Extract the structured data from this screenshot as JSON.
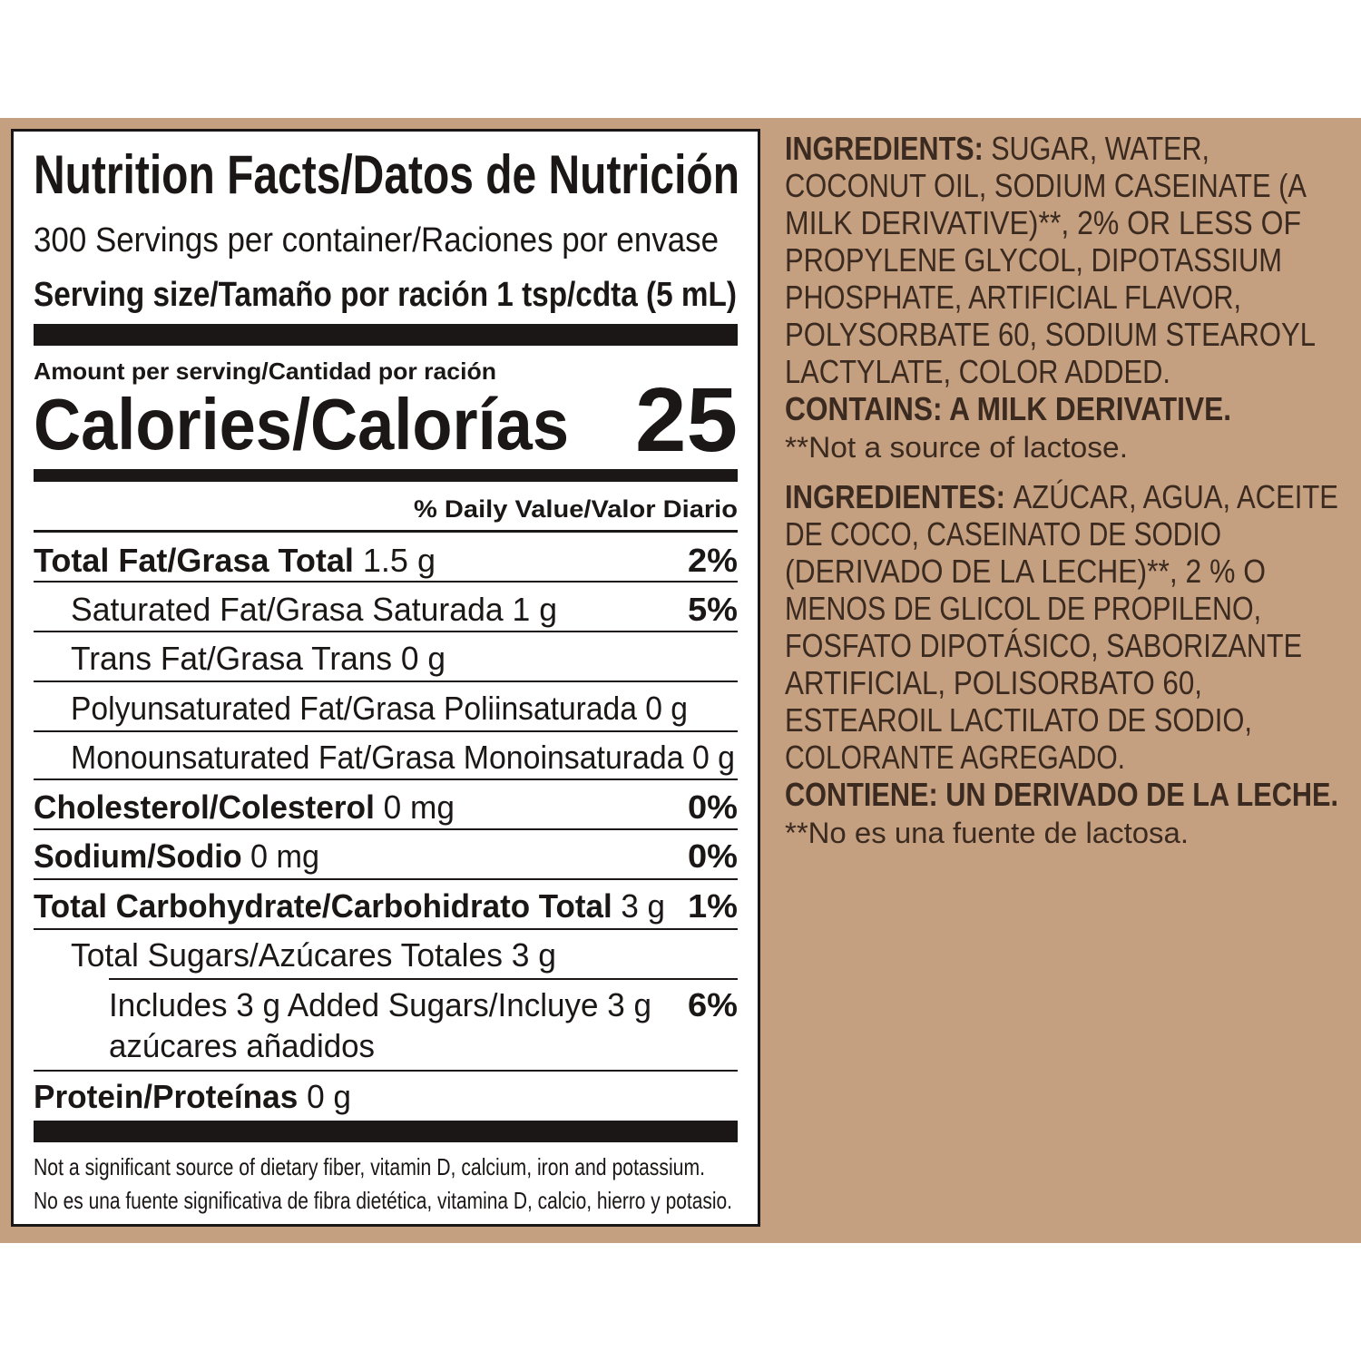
{
  "nutrition": {
    "title": "Nutrition Facts/Datos de Nutrición",
    "servings": "300 Servings per container/Raciones por envase",
    "serving_size": "Serving size/Tamaño por ración 1 tsp/cdta (5 mL)",
    "amount_per_serving": "Amount per serving/Cantidad por ración",
    "calories_label": "Calories/Calorías",
    "calories": 25,
    "daily_value_header": "% Daily Value/Valor Diario",
    "rows": [
      {
        "name": "Total Fat/Grasa Total",
        "amount": "1.5 g",
        "dv": "2%"
      },
      {
        "name": "Saturated Fat/Grasa Saturada",
        "amount": "1 g",
        "dv": "5%"
      },
      {
        "name": "Trans Fat/Grasa Trans",
        "amount": "0 g"
      },
      {
        "name": "Polyunsaturated Fat/Grasa Poliinsaturada",
        "amount": "0 g"
      },
      {
        "name": "Monounsaturated Fat/Grasa Monoinsaturada",
        "amount": "0 g"
      },
      {
        "name": "Cholesterol/Colesterol",
        "amount": "0 mg",
        "dv": "0%"
      },
      {
        "name": "Sodium/Sodio",
        "amount": "0 mg",
        "dv": "0%"
      },
      {
        "name": "Total Carbohydrate/Carbohidrato Total",
        "amount": "3 g",
        "dv": "1%"
      },
      {
        "name": "Total Sugars/Azúcares Totales",
        "amount": "3 g"
      },
      {
        "name": "Includes 3 g Added Sugars/Incluye 3 g",
        "name_line2": "azúcares añadidos",
        "dv": "6%"
      },
      {
        "name": "Protein/Proteínas",
        "amount": "0 g"
      }
    ],
    "footnotes": [
      "Not a significant source of dietary fiber, vitamin D, calcium, iron and potassium.",
      "No es una fuente significativa de fibra dietética, vitamina D, calcio, hierro y potasio."
    ]
  },
  "ingredients": [
    {
      "label": "INGREDIENTS:",
      "lines": [
        "SUGAR, WATER,",
        "COCONUT OIL, SODIUM CASEINATE (A",
        "MILK DERIVATIVE)**, 2% OR LESS OF",
        "PROPYLENE GLYCOL, DIPOTASSIUM",
        "PHOSPHATE, ARTIFICIAL FLAVOR,",
        "POLYSORBATE 60, SODIUM STEAROYL",
        "LACTYLATE, COLOR ADDED."
      ],
      "contains": "CONTAINS: A MILK DERIVATIVE.",
      "note": "**Not a source of lactose."
    },
    {
      "label": "INGREDIENTES:",
      "lines": [
        "AZÚCAR, AGUA, ACEITE",
        "DE COCO, CASEINATO DE SODIO",
        "(DERIVADO DE LA LECHE)**, 2 % O",
        "MENOS DE GLICOL DE PROPILENO,",
        "FOSFATO DIPOTÁSICO, SABORIZANTE",
        "ARTIFICIAL, POLISORBATO 60,",
        "ESTEAROIL LACTILATO DE SODIO,",
        "COLORANTE AGREGADO."
      ],
      "contains": "CONTIENE: UN DERIVADO DE LA LECHE.",
      "note": "**No es una fuente de lactosa."
    }
  ]
}
